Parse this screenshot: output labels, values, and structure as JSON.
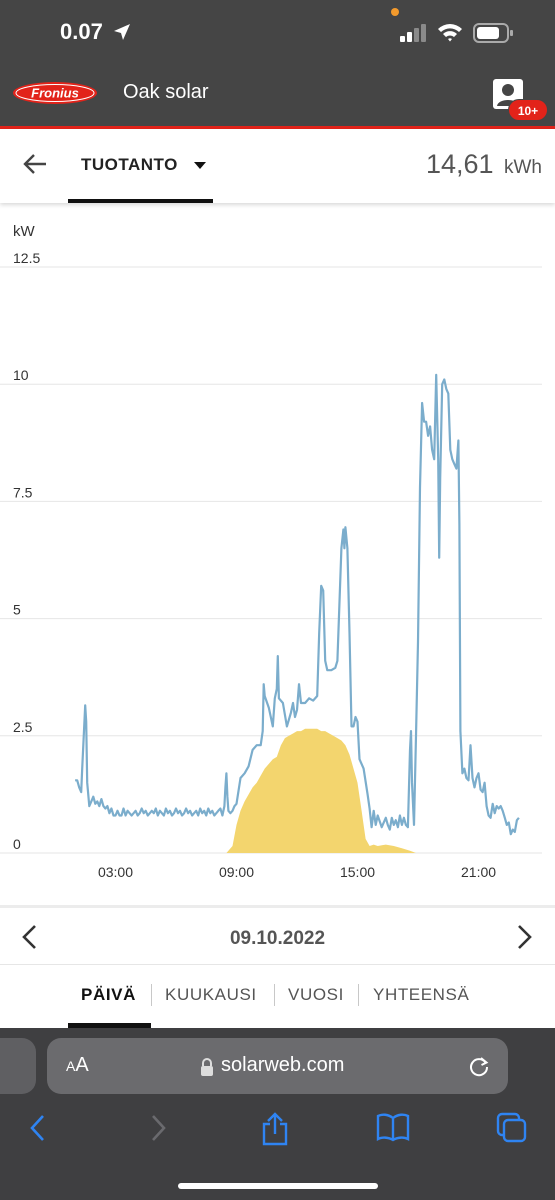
{
  "status_bar": {
    "time": "0.07"
  },
  "header": {
    "logo_text": "Fronius",
    "title": "Oak solar",
    "badge": "10+"
  },
  "toolbar": {
    "metric": "TUOTANTO",
    "total_value": "14,61",
    "total_unit": "kWh"
  },
  "chart_data": {
    "type": "area",
    "ylabel": "kW",
    "ylim": [
      0,
      12.5
    ],
    "yticks": [
      "12.5",
      "10",
      "7.5",
      "5",
      "2.5",
      "0"
    ],
    "xticks": [
      "03:00",
      "09:00",
      "15:00",
      "21:00"
    ],
    "xlim": [
      0,
      24
    ],
    "series": [
      {
        "color": "#7badcc",
        "points": [
          [
            1.0,
            1.55
          ],
          [
            1.1,
            1.55
          ],
          [
            1.2,
            1.4
          ],
          [
            1.3,
            1.3
          ],
          [
            1.35,
            1.8
          ],
          [
            1.45,
            2.7
          ],
          [
            1.5,
            3.15
          ],
          [
            1.55,
            2.8
          ],
          [
            1.6,
            1.5
          ],
          [
            1.7,
            1.0
          ],
          [
            1.8,
            1.1
          ],
          [
            1.9,
            1.2
          ],
          [
            2.0,
            1.05
          ],
          [
            2.1,
            1.1
          ],
          [
            2.2,
            1.0
          ],
          [
            2.3,
            1.15
          ],
          [
            2.4,
            1.0
          ],
          [
            2.5,
            0.95
          ],
          [
            2.6,
            1.0
          ],
          [
            2.7,
            0.85
          ],
          [
            2.8,
            0.95
          ],
          [
            2.9,
            0.8
          ],
          [
            3.0,
            0.8
          ],
          [
            3.1,
            0.9
          ],
          [
            3.2,
            0.8
          ],
          [
            3.3,
            0.8
          ],
          [
            3.4,
            0.95
          ],
          [
            3.5,
            0.8
          ],
          [
            3.6,
            0.9
          ],
          [
            3.7,
            0.85
          ],
          [
            3.8,
            0.8
          ],
          [
            3.9,
            0.85
          ],
          [
            4.0,
            0.9
          ],
          [
            4.1,
            0.8
          ],
          [
            4.2,
            0.85
          ],
          [
            4.3,
            0.95
          ],
          [
            4.4,
            0.85
          ],
          [
            4.5,
            0.9
          ],
          [
            4.6,
            0.8
          ],
          [
            4.7,
            0.85
          ],
          [
            4.8,
            0.9
          ],
          [
            4.9,
            0.85
          ],
          [
            5.0,
            0.95
          ],
          [
            5.1,
            0.8
          ],
          [
            5.2,
            0.9
          ],
          [
            5.3,
            0.85
          ],
          [
            5.4,
            0.8
          ],
          [
            5.5,
            0.95
          ],
          [
            5.6,
            0.85
          ],
          [
            5.7,
            0.9
          ],
          [
            5.8,
            0.8
          ],
          [
            5.9,
            0.85
          ],
          [
            6.0,
            0.95
          ],
          [
            6.1,
            0.85
          ],
          [
            6.2,
            0.9
          ],
          [
            6.3,
            0.8
          ],
          [
            6.4,
            0.85
          ],
          [
            6.5,
            0.95
          ],
          [
            6.6,
            0.85
          ],
          [
            6.7,
            0.9
          ],
          [
            6.8,
            0.8
          ],
          [
            6.9,
            0.85
          ],
          [
            7.0,
            0.9
          ],
          [
            7.1,
            0.8
          ],
          [
            7.2,
            0.95
          ],
          [
            7.3,
            0.85
          ],
          [
            7.4,
            0.9
          ],
          [
            7.5,
            0.8
          ],
          [
            7.6,
            0.95
          ],
          [
            7.7,
            0.85
          ],
          [
            7.8,
            0.9
          ],
          [
            7.9,
            0.8
          ],
          [
            8.0,
            0.85
          ],
          [
            8.1,
            0.9
          ],
          [
            8.2,
            0.95
          ],
          [
            8.3,
            0.8
          ],
          [
            8.4,
            1.0
          ],
          [
            8.45,
            1.4
          ],
          [
            8.5,
            1.7
          ],
          [
            8.55,
            1.2
          ],
          [
            8.6,
            0.9
          ],
          [
            8.7,
            0.85
          ],
          [
            8.8,
            0.9
          ],
          [
            8.9,
            1.0
          ],
          [
            9.0,
            1.05
          ],
          [
            9.2,
            1.6
          ],
          [
            9.4,
            1.7
          ],
          [
            9.6,
            1.85
          ],
          [
            9.8,
            2.2
          ],
          [
            10.0,
            2.3
          ],
          [
            10.2,
            2.3
          ],
          [
            10.3,
            2.6
          ],
          [
            10.35,
            3.6
          ],
          [
            10.4,
            3.35
          ],
          [
            10.6,
            3.1
          ],
          [
            10.8,
            2.7
          ],
          [
            10.9,
            3.3
          ],
          [
            11.0,
            3.5
          ],
          [
            11.05,
            4.2
          ],
          [
            11.1,
            3.3
          ],
          [
            11.3,
            3.2
          ],
          [
            11.5,
            2.7
          ],
          [
            11.7,
            3.0
          ],
          [
            11.8,
            3.2
          ],
          [
            11.9,
            2.9
          ],
          [
            12.0,
            3.05
          ],
          [
            12.1,
            3.6
          ],
          [
            12.2,
            3.2
          ],
          [
            12.4,
            3.2
          ],
          [
            12.6,
            3.3
          ],
          [
            12.8,
            3.25
          ],
          [
            13.0,
            3.35
          ],
          [
            13.1,
            4.7
          ],
          [
            13.2,
            5.7
          ],
          [
            13.3,
            5.6
          ],
          [
            13.4,
            4.1
          ],
          [
            13.5,
            3.9
          ],
          [
            13.7,
            3.9
          ],
          [
            13.9,
            3.95
          ],
          [
            14.0,
            4.1
          ],
          [
            14.1,
            5.3
          ],
          [
            14.2,
            6.5
          ],
          [
            14.3,
            6.9
          ],
          [
            14.35,
            6.5
          ],
          [
            14.4,
            6.95
          ],
          [
            14.5,
            6.5
          ],
          [
            14.6,
            4.7
          ],
          [
            14.7,
            2.7
          ],
          [
            14.8,
            2.7
          ],
          [
            14.9,
            2.9
          ],
          [
            15.0,
            2.8
          ],
          [
            15.1,
            2.0
          ],
          [
            15.3,
            1.8
          ],
          [
            15.5,
            1.25
          ],
          [
            15.6,
            0.95
          ],
          [
            15.7,
            0.55
          ],
          [
            15.8,
            0.9
          ],
          [
            15.9,
            0.6
          ],
          [
            16.0,
            0.8
          ],
          [
            16.2,
            0.55
          ],
          [
            16.4,
            0.75
          ],
          [
            16.5,
            0.6
          ],
          [
            16.6,
            0.5
          ],
          [
            16.7,
            0.75
          ],
          [
            16.8,
            0.6
          ],
          [
            16.9,
            0.7
          ],
          [
            17.0,
            0.55
          ],
          [
            17.1,
            0.8
          ],
          [
            17.2,
            0.6
          ],
          [
            17.3,
            0.75
          ],
          [
            17.4,
            0.6
          ],
          [
            17.5,
            0.55
          ],
          [
            17.6,
            2.2
          ],
          [
            17.65,
            2.6
          ],
          [
            17.7,
            1.5
          ],
          [
            17.8,
            0.6
          ],
          [
            17.9,
            2.5
          ],
          [
            18.0,
            4.5
          ],
          [
            18.1,
            7.8
          ],
          [
            18.2,
            9.6
          ],
          [
            18.3,
            9.2
          ],
          [
            18.4,
            9.2
          ],
          [
            18.5,
            8.9
          ],
          [
            18.6,
            9.1
          ],
          [
            18.7,
            8.6
          ],
          [
            18.8,
            8.4
          ],
          [
            18.9,
            10.2
          ],
          [
            19.0,
            8.4
          ],
          [
            19.05,
            6.3
          ],
          [
            19.1,
            8.0
          ],
          [
            19.2,
            10.0
          ],
          [
            19.3,
            10.1
          ],
          [
            19.4,
            9.9
          ],
          [
            19.5,
            9.8
          ],
          [
            19.6,
            8.6
          ],
          [
            19.7,
            8.4
          ],
          [
            19.8,
            8.3
          ],
          [
            19.9,
            8.2
          ],
          [
            20.0,
            8.8
          ],
          [
            20.05,
            7.0
          ],
          [
            20.1,
            2.6
          ],
          [
            20.2,
            1.7
          ],
          [
            20.3,
            1.8
          ],
          [
            20.4,
            1.6
          ],
          [
            20.5,
            1.55
          ],
          [
            20.6,
            2.3
          ],
          [
            20.7,
            1.6
          ],
          [
            20.8,
            1.4
          ],
          [
            20.9,
            1.6
          ],
          [
            21.0,
            1.7
          ],
          [
            21.1,
            1.35
          ],
          [
            21.2,
            1.3
          ],
          [
            21.3,
            1.5
          ],
          [
            21.4,
            1.0
          ],
          [
            21.5,
            0.8
          ],
          [
            21.6,
            0.75
          ],
          [
            21.7,
            1.05
          ],
          [
            21.8,
            0.85
          ],
          [
            21.9,
            1.0
          ],
          [
            22.0,
            0.95
          ],
          [
            22.1,
            1.0
          ],
          [
            22.2,
            0.9
          ],
          [
            22.3,
            0.75
          ],
          [
            22.4,
            0.6
          ],
          [
            22.5,
            0.65
          ],
          [
            22.6,
            0.4
          ],
          [
            22.7,
            0.5
          ],
          [
            22.8,
            0.45
          ],
          [
            22.9,
            0.7
          ],
          [
            23.0,
            0.75
          ]
        ]
      },
      {
        "color": "#f3d56e",
        "points": [
          [
            8.5,
            0.0
          ],
          [
            8.8,
            0.15
          ],
          [
            9.0,
            0.6
          ],
          [
            9.2,
            0.9
          ],
          [
            9.4,
            1.1
          ],
          [
            9.6,
            1.25
          ],
          [
            9.8,
            1.4
          ],
          [
            10.0,
            1.5
          ],
          [
            10.2,
            1.65
          ],
          [
            10.4,
            1.8
          ],
          [
            10.6,
            1.9
          ],
          [
            10.8,
            2.0
          ],
          [
            11.0,
            2.05
          ],
          [
            11.2,
            2.3
          ],
          [
            11.4,
            2.45
          ],
          [
            11.6,
            2.5
          ],
          [
            11.8,
            2.55
          ],
          [
            12.0,
            2.6
          ],
          [
            12.2,
            2.6
          ],
          [
            12.4,
            2.65
          ],
          [
            12.6,
            2.65
          ],
          [
            12.8,
            2.65
          ],
          [
            13.0,
            2.65
          ],
          [
            13.2,
            2.6
          ],
          [
            13.4,
            2.6
          ],
          [
            13.6,
            2.55
          ],
          [
            13.8,
            2.5
          ],
          [
            14.0,
            2.45
          ],
          [
            14.2,
            2.4
          ],
          [
            14.4,
            2.3
          ],
          [
            14.6,
            2.1
          ],
          [
            14.8,
            1.8
          ],
          [
            15.0,
            1.5
          ],
          [
            15.2,
            0.9
          ],
          [
            15.4,
            0.3
          ],
          [
            15.6,
            0.15
          ],
          [
            15.8,
            0.18
          ],
          [
            16.0,
            0.15
          ],
          [
            16.4,
            0.18
          ],
          [
            16.8,
            0.15
          ],
          [
            17.2,
            0.1
          ],
          [
            17.6,
            0.05
          ],
          [
            17.9,
            0.0
          ]
        ]
      }
    ]
  },
  "date_nav": {
    "date": "09.10.2022"
  },
  "period_tabs": {
    "day": "PÄIVÄ",
    "month": "KUUKAUSI",
    "year": "VUOSI",
    "total": "YHTEENSÄ"
  },
  "browser": {
    "aa": "AA",
    "url": "solarweb.com"
  }
}
